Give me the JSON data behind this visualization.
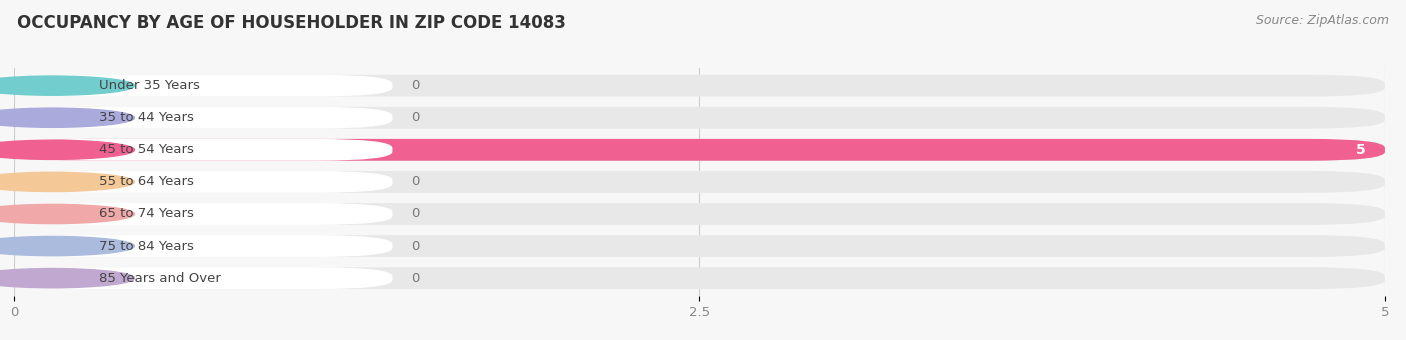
{
  "title": "OCCUPANCY BY AGE OF HOUSEHOLDER IN ZIP CODE 14083",
  "source": "Source: ZipAtlas.com",
  "categories": [
    "Under 35 Years",
    "35 to 44 Years",
    "45 to 54 Years",
    "55 to 64 Years",
    "65 to 74 Years",
    "75 to 84 Years",
    "85 Years and Over"
  ],
  "values": [
    0,
    0,
    5,
    0,
    0,
    0,
    0
  ],
  "bar_colors": [
    "#72cece",
    "#aaaadd",
    "#f06090",
    "#f5c898",
    "#f0a8a8",
    "#aabbdd",
    "#c0a8d0"
  ],
  "background_color": "#f7f7f7",
  "bar_bg_color": "#e8e8e8",
  "xlim": [
    0,
    5
  ],
  "xticks": [
    0,
    2.5,
    5
  ],
  "title_fontsize": 12,
  "source_fontsize": 9,
  "label_fontsize": 9.5
}
